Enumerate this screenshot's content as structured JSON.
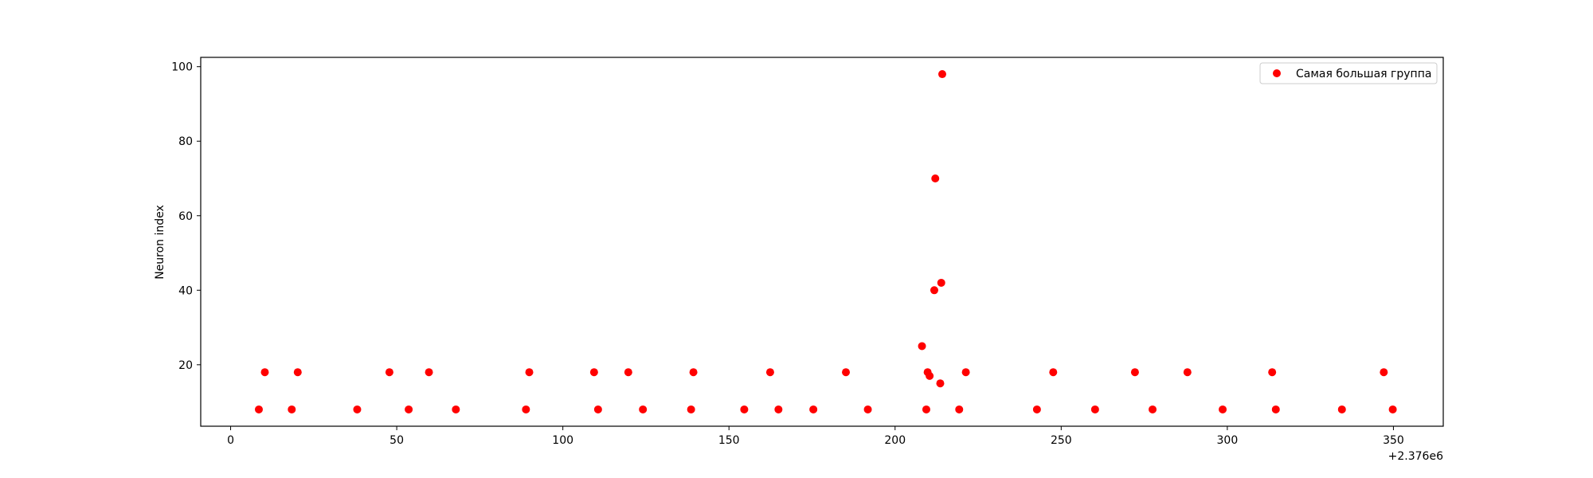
{
  "chart_data": {
    "type": "scatter",
    "title": "",
    "xlabel": "",
    "ylabel": "Neuron index",
    "x_offset_label": "+2.376e6",
    "xlim": [
      2375991,
      2376365
    ],
    "ylim": [
      3.5,
      102.5
    ],
    "xticks": [
      0,
      50,
      100,
      150,
      200,
      250,
      300,
      350
    ],
    "yticks": [
      20,
      40,
      60,
      80,
      100
    ],
    "grid": false,
    "legend_position": "top-right",
    "colors": {
      "series": "#ff0000",
      "axes": "#000000"
    },
    "series": [
      {
        "name": "Самая большая группа",
        "marker": "circle",
        "color": "#ff0000",
        "x": [
          2376008.5,
          2376010.3,
          2376018.4,
          2376020.2,
          2376038.1,
          2376047.8,
          2376053.6,
          2376059.7,
          2376067.8,
          2376088.9,
          2376089.9,
          2376109.4,
          2376110.6,
          2376119.7,
          2376124.1,
          2376138.6,
          2376139.3,
          2376154.6,
          2376162.4,
          2376164.9,
          2376175.4,
          2376185.2,
          2376191.8,
          2376208.1,
          2376209.4,
          2376209.8,
          2376210.4,
          2376211.8,
          2376212.1,
          2376213.6,
          2376213.9,
          2376214.2,
          2376219.3,
          2376221.3,
          2376242.7,
          2376247.6,
          2376260.2,
          2376272.2,
          2376277.5,
          2376288.0,
          2376298.6,
          2376313.5,
          2376314.6,
          2376334.5,
          2376347.1,
          2376349.8
        ],
        "y": [
          8,
          18,
          8,
          18,
          8,
          18,
          8,
          18,
          8,
          8,
          18,
          18,
          8,
          18,
          8,
          8,
          18,
          8,
          18,
          8,
          8,
          18,
          8,
          25,
          8,
          18,
          17,
          40,
          70,
          15,
          42,
          98,
          8,
          18,
          8,
          18,
          8,
          18,
          8,
          18,
          8,
          18,
          8,
          8,
          18,
          8
        ]
      }
    ]
  }
}
